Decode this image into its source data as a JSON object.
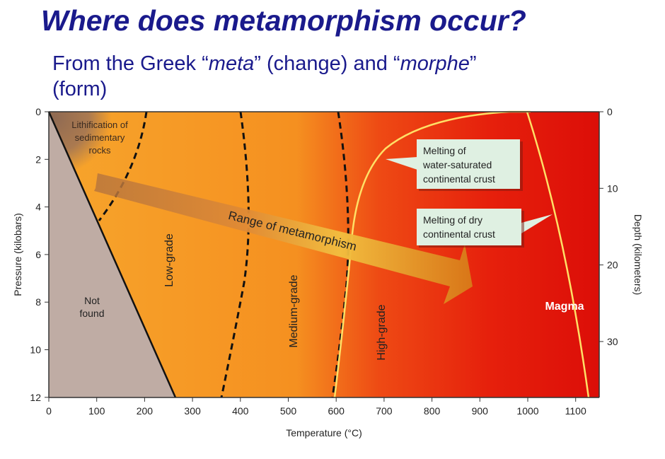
{
  "slide": {
    "title": "Where does metamorphism occur?",
    "subtitle_parts": [
      "From the Greek “",
      "meta",
      "” (change) and “",
      "morphe",
      "”",
      "(form)"
    ]
  },
  "diagram": {
    "x_axis": {
      "label": "Temperature (°C)",
      "ticks": [
        "0",
        "100",
        "200",
        "300",
        "400",
        "500",
        "600",
        "700",
        "800",
        "900",
        "1000",
        "1100"
      ]
    },
    "y_axis_left": {
      "label": "Pressure (kilobars)",
      "ticks": [
        "0",
        "2",
        "4",
        "6",
        "8",
        "10",
        "12"
      ]
    },
    "y_axis_right": {
      "label": "Depth (kilometers)",
      "ticks": [
        "0",
        "10",
        "20",
        "30"
      ]
    },
    "regions": {
      "lithification": [
        "Lithification of",
        "sedimentary",
        "rocks"
      ],
      "not_found": [
        "Not",
        "found"
      ],
      "low_grade": "Low-grade",
      "medium_grade": "Medium-grade",
      "high_grade": "High-grade",
      "magma": "Magma",
      "range": "Range of metamorphism"
    },
    "callouts": {
      "wet_melting": [
        "Melting of",
        "water-saturated",
        "continental crust"
      ],
      "dry_melting": [
        "Melting of dry",
        "continental crust"
      ]
    },
    "colors": {
      "orange": "#f6a02a",
      "red": "#e4150c",
      "not_found": "#bfaca4",
      "lithification": "#9b7150",
      "melt_line": "#ffe066",
      "callout": "#dff0e2",
      "title": "#1a1a8c"
    }
  }
}
